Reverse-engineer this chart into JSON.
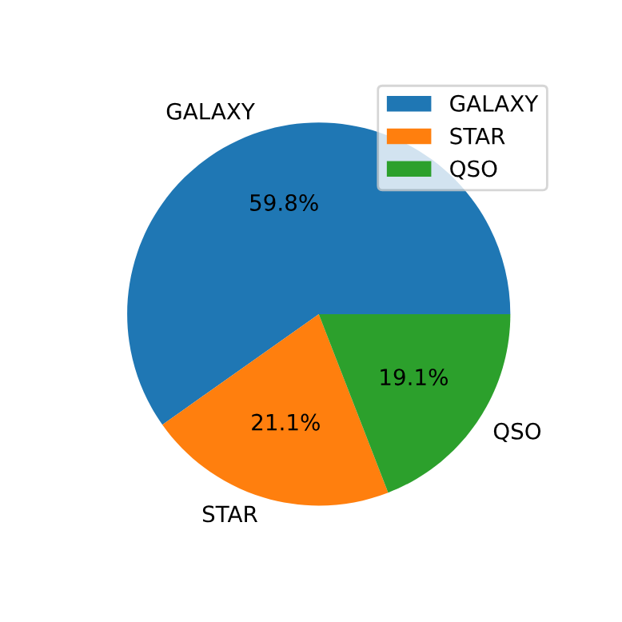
{
  "chart_data": {
    "type": "pie",
    "categories": [
      "GALAXY",
      "STAR",
      "QSO"
    ],
    "values": [
      59.8,
      21.1,
      19.1
    ],
    "value_labels": [
      "59.8%",
      "21.1%",
      "19.1%"
    ],
    "colors": [
      "#1f77b4",
      "#ff7f0e",
      "#2ca02c"
    ],
    "legend": "top right"
  }
}
